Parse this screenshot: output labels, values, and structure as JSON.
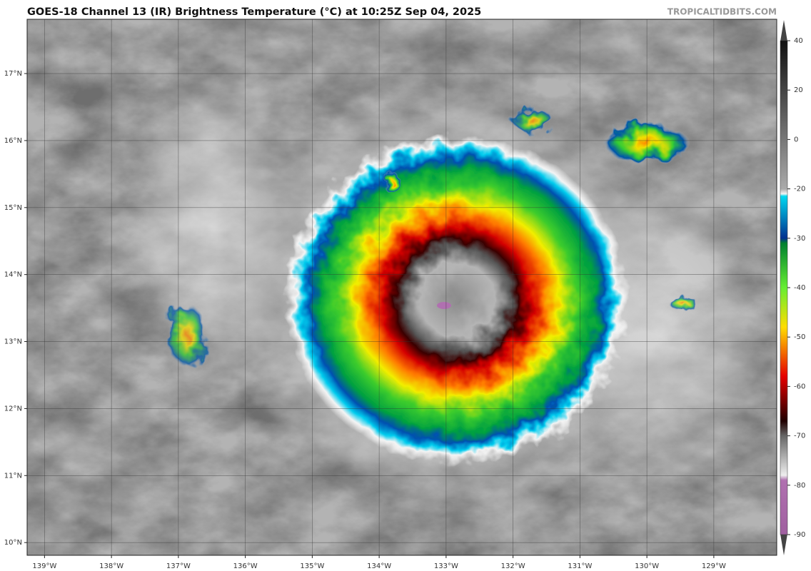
{
  "title": "GOES-18 Channel 13 (IR) Brightness Temperature (°C) at 10:25Z Sep 04, 2025",
  "watermark": "TROPICALTIDBITS.COM",
  "map": {
    "lat_range": [
      9.81,
      17.81
    ],
    "lon_range": [
      139.26,
      128.06
    ],
    "lat_ticks": [
      {
        "value": 17,
        "label": "17°N"
      },
      {
        "value": 16,
        "label": "16°N"
      },
      {
        "value": 15,
        "label": "15°N"
      },
      {
        "value": 14,
        "label": "14°N"
      },
      {
        "value": 13,
        "label": "13°N"
      },
      {
        "value": 12,
        "label": "12°N"
      },
      {
        "value": 11,
        "label": "11°N"
      },
      {
        "value": 10,
        "label": "10°N"
      }
    ],
    "lon_ticks": [
      {
        "value": 139,
        "label": "139°W"
      },
      {
        "value": 138,
        "label": "138°W"
      },
      {
        "value": 137,
        "label": "137°W"
      },
      {
        "value": 136,
        "label": "136°W"
      },
      {
        "value": 135,
        "label": "135°W"
      },
      {
        "value": 134,
        "label": "134°W"
      },
      {
        "value": 133,
        "label": "133°W"
      },
      {
        "value": 132,
        "label": "132°W"
      },
      {
        "value": 131,
        "label": "131°W"
      },
      {
        "value": 130,
        "label": "130°W"
      },
      {
        "value": 129,
        "label": "129°W"
      }
    ]
  },
  "colorbar": {
    "ticks": [
      40,
      20,
      0,
      -20,
      -30,
      -40,
      -50,
      -60,
      -70,
      -80,
      -90
    ]
  }
}
